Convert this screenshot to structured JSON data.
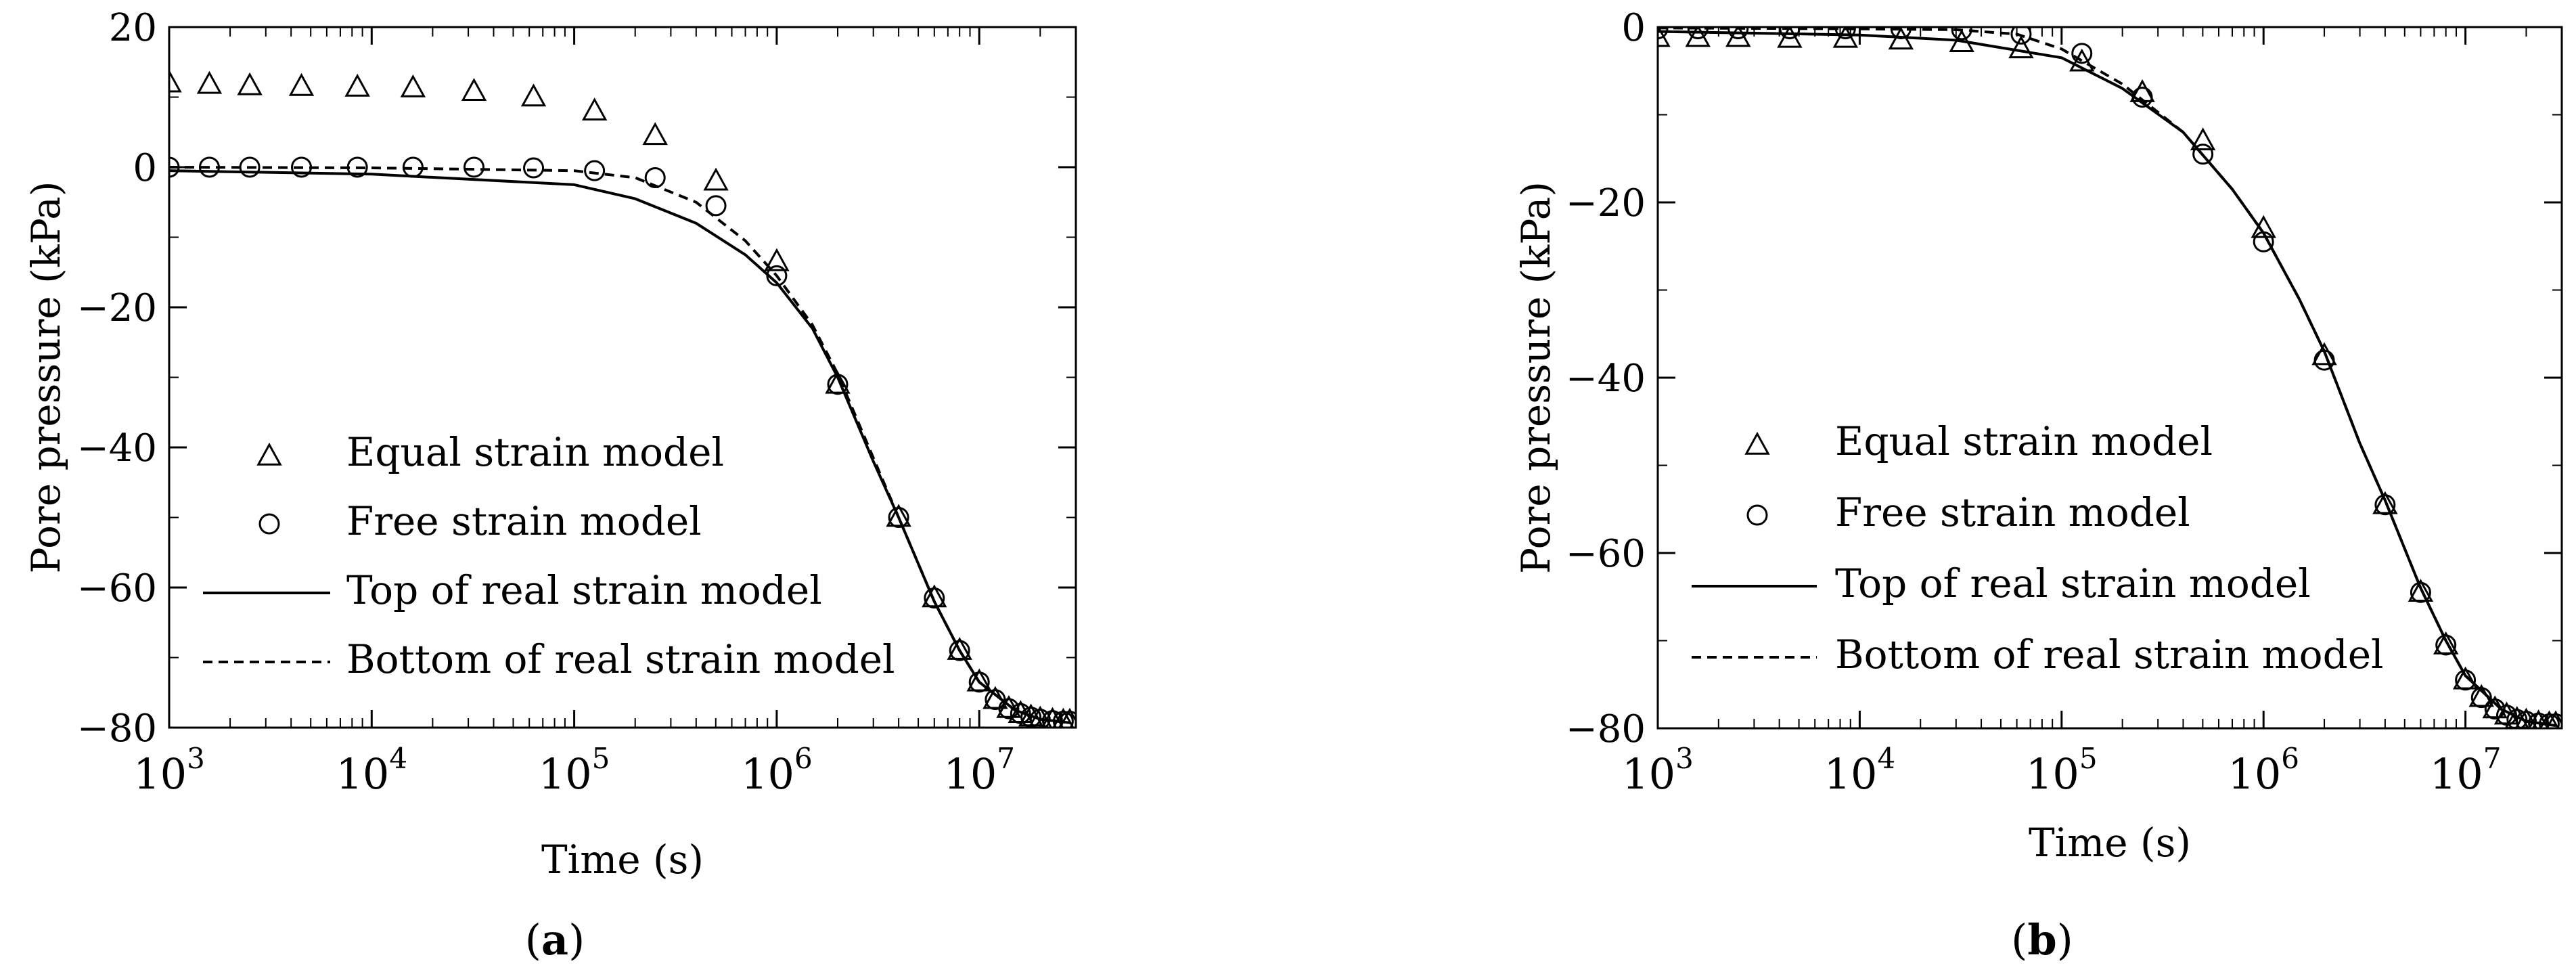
{
  "chart_data": [
    {
      "panel": "a",
      "caption": "(a)",
      "caption_letter": "a",
      "type": "line",
      "xlabel": "Time (s)",
      "ylabel": "Pore pressure (kPa)",
      "xscale": "log",
      "xlim": [
        1000,
        30000000
      ],
      "ylim": [
        -80,
        20
      ],
      "x_ticks": [
        {
          "value": 1000,
          "base": "10",
          "exp": "3"
        },
        {
          "value": 10000,
          "base": "10",
          "exp": "4"
        },
        {
          "value": 100000,
          "base": "10",
          "exp": "5"
        },
        {
          "value": 1000000,
          "base": "10",
          "exp": "6"
        },
        {
          "value": 10000000,
          "base": "10",
          "exp": "7"
        }
      ],
      "y_ticks": [
        {
          "value": 20,
          "label": "20"
        },
        {
          "value": 0,
          "label": "0"
        },
        {
          "value": -20,
          "label": "−20"
        },
        {
          "value": -40,
          "label": "−40"
        },
        {
          "value": -60,
          "label": "−60"
        },
        {
          "value": -80,
          "label": "−80"
        }
      ],
      "grid": false,
      "legend_position": "lower-left",
      "series": [
        {
          "name": "Equal strain model",
          "style": "triangle-markers",
          "x": [
            1000,
            1580,
            2500,
            4500,
            8500,
            16000,
            32000,
            63000,
            126000,
            251000,
            501000,
            1000000,
            2000000,
            4000000,
            6000000,
            8000000,
            10000000,
            12000000,
            14000000,
            16000000,
            18000000,
            20000000,
            23000000,
            26000000,
            28000000
          ],
          "y": [
            12,
            11.8,
            11.6,
            11.5,
            11.4,
            11.3,
            10.8,
            10,
            8,
            4.5,
            -2,
            -13.5,
            -31,
            -50,
            -61.5,
            -69,
            -73.5,
            -76,
            -77.3,
            -78,
            -78.5,
            -78.8,
            -79,
            -79.1,
            -79.1
          ]
        },
        {
          "name": "Free strain model",
          "style": "circle-markers",
          "x": [
            1000,
            1580,
            2500,
            4500,
            8500,
            16000,
            32000,
            63000,
            126000,
            251000,
            501000,
            1000000,
            2000000,
            4000000,
            6000000,
            8000000,
            10000000,
            12000000,
            14000000,
            16000000,
            18000000,
            20000000,
            23000000,
            26000000,
            28000000
          ],
          "y": [
            0,
            0,
            0,
            0,
            0,
            0,
            0,
            -0.1,
            -0.5,
            -1.5,
            -5.5,
            -15.5,
            -31,
            -50,
            -61.5,
            -69,
            -73.5,
            -76,
            -77.3,
            -78,
            -78.5,
            -78.8,
            -79,
            -79.1,
            -79.1
          ]
        },
        {
          "name": "Top of real strain model",
          "style": "solid-line",
          "x": [
            1000,
            10000,
            100000,
            200000,
            400000,
            700000,
            1000000,
            1500000,
            2000000,
            3000000,
            4000000,
            6000000,
            8000000,
            10000000,
            15000000,
            20000000,
            28000000
          ],
          "y": [
            -0.5,
            -1,
            -2.5,
            -4.5,
            -8,
            -12.5,
            -16.5,
            -23,
            -30,
            -42,
            -50,
            -62,
            -69,
            -73.5,
            -77.5,
            -78.8,
            -79.3
          ]
        },
        {
          "name": "Bottom of real strain model",
          "style": "dashed-line",
          "x": [
            1000,
            10000,
            100000,
            200000,
            400000,
            700000,
            1000000,
            1500000,
            2000000,
            3000000,
            4000000,
            6000000,
            8000000,
            10000000,
            15000000,
            20000000,
            28000000
          ],
          "y": [
            0,
            -0.1,
            -0.5,
            -1.5,
            -5,
            -10.5,
            -15.5,
            -22.5,
            -29.5,
            -41.5,
            -50,
            -62,
            -69,
            -73.5,
            -77.5,
            -78.8,
            -79.3
          ]
        }
      ]
    },
    {
      "panel": "b",
      "caption": "(b)",
      "caption_letter": "b",
      "type": "line",
      "xlabel": "Time  (s)",
      "ylabel": "Pore pressure  (kPa)",
      "xscale": "log",
      "xlim": [
        1000,
        30000000
      ],
      "ylim": [
        -80,
        0
      ],
      "x_ticks": [
        {
          "value": 1000,
          "base": "10",
          "exp": "3"
        },
        {
          "value": 10000,
          "base": "10",
          "exp": "4"
        },
        {
          "value": 100000,
          "base": "10",
          "exp": "5"
        },
        {
          "value": 1000000,
          "base": "10",
          "exp": "6"
        },
        {
          "value": 10000000,
          "base": "10",
          "exp": "7"
        }
      ],
      "y_ticks": [
        {
          "value": 0,
          "label": "0"
        },
        {
          "value": -20,
          "label": "−20"
        },
        {
          "value": -40,
          "label": "−40"
        },
        {
          "value": -60,
          "label": "−60"
        },
        {
          "value": -80,
          "label": "−80"
        }
      ],
      "grid": false,
      "legend_position": "lower-left",
      "series": [
        {
          "name": "Equal strain model",
          "style": "triangle-markers",
          "x": [
            1000,
            1580,
            2500,
            4500,
            8500,
            16000,
            32000,
            63000,
            126000,
            251000,
            501000,
            1000000,
            2000000,
            4000000,
            6000000,
            8000000,
            10000000,
            12000000,
            14000000,
            16000000,
            18000000,
            20000000,
            23000000,
            26000000,
            28000000
          ],
          "y": [
            -1.2,
            -1.2,
            -1.2,
            -1.3,
            -1.3,
            -1.5,
            -1.8,
            -2.5,
            -4,
            -7.5,
            -13,
            -23,
            -37.5,
            -54.5,
            -64.5,
            -70.5,
            -74.5,
            -76.5,
            -77.8,
            -78.5,
            -79,
            -79.2,
            -79.4,
            -79.5,
            -79.5
          ]
        },
        {
          "name": "Free strain model",
          "style": "circle-markers",
          "x": [
            1000,
            1580,
            2500,
            4500,
            8500,
            16000,
            32000,
            63000,
            126000,
            251000,
            501000,
            1000000,
            2000000,
            4000000,
            6000000,
            8000000,
            10000000,
            12000000,
            14000000,
            16000000,
            18000000,
            20000000,
            23000000,
            26000000,
            28000000
          ],
          "y": [
            -0.2,
            -0.2,
            -0.2,
            -0.2,
            -0.2,
            -0.2,
            -0.3,
            -0.8,
            -3,
            -8,
            -14.5,
            -24.5,
            -38,
            -54.5,
            -64.5,
            -70.5,
            -74.5,
            -76.5,
            -77.8,
            -78.5,
            -79,
            -79.2,
            -79.4,
            -79.5,
            -79.5
          ]
        },
        {
          "name": "Top of real strain model",
          "style": "solid-line",
          "x": [
            1000,
            10000,
            30000,
            100000,
            200000,
            400000,
            700000,
            1000000,
            1500000,
            2000000,
            3000000,
            4000000,
            6000000,
            8000000,
            10000000,
            15000000,
            20000000,
            28000000
          ],
          "y": [
            -0.5,
            -0.9,
            -1.5,
            -3.5,
            -7,
            -12,
            -18.5,
            -23.5,
            -31,
            -37,
            -47.5,
            -54,
            -64,
            -70,
            -74,
            -77.8,
            -79.2,
            -79.7
          ]
        },
        {
          "name": "Bottom of real strain model",
          "style": "dashed-line",
          "x": [
            1000,
            10000,
            30000,
            60000,
            100000,
            200000,
            400000,
            700000,
            1000000,
            1500000,
            2000000,
            3000000,
            4000000,
            6000000,
            8000000,
            10000000,
            15000000,
            20000000,
            28000000
          ],
          "y": [
            -0.1,
            -0.2,
            -0.3,
            -0.8,
            -2.5,
            -6.5,
            -12,
            -18.5,
            -23.5,
            -31,
            -37,
            -47.5,
            -54,
            -64,
            -70,
            -74,
            -77.8,
            -79.2,
            -79.7
          ]
        }
      ]
    }
  ]
}
